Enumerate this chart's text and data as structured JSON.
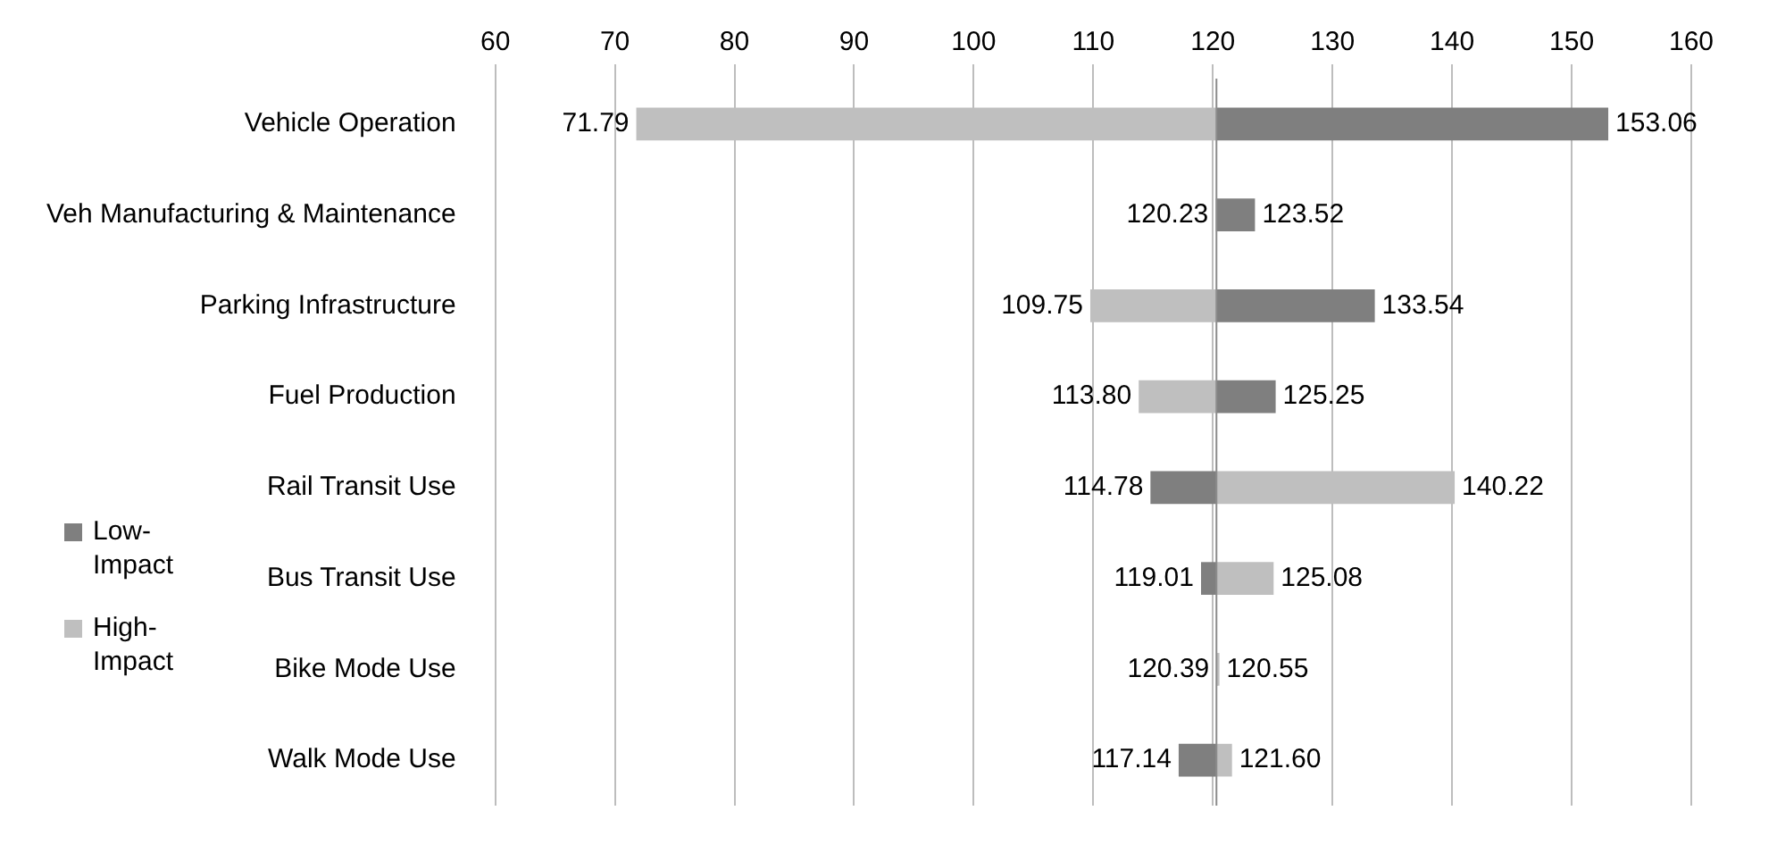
{
  "chart_data": {
    "type": "bar",
    "orientation": "horizontal",
    "categories": [
      "Vehicle Operation",
      "Veh Manufacturing & Maintenance",
      "Parking Infrastructure",
      "Fuel Production",
      "Rail Transit Use",
      "Bus Transit Use",
      "Bike Mode Use",
      "Walk Mode Use"
    ],
    "series": [
      {
        "name": "Low-Impact",
        "color": "#7f7f7f",
        "base": [
          120.3,
          120.3,
          120.3,
          120.3,
          120.3,
          120.3,
          120.3,
          120.3
        ],
        "values": [
          32.76,
          3.22,
          13.24,
          4.95,
          -5.52,
          -1.29,
          0.09,
          -3.16
        ],
        "value_labels": [
          "153.06",
          "123.52",
          "133.54",
          "125.25",
          "114.78",
          "119.01",
          "120.39",
          "117.14"
        ]
      },
      {
        "name": "High-Impact",
        "color": "#bfbfbf",
        "base": [
          120.3,
          120.3,
          120.3,
          120.3,
          120.3,
          120.3,
          120.3,
          120.3
        ],
        "values": [
          -48.51,
          -0.07,
          -10.55,
          -6.5,
          19.92,
          4.78,
          0.25,
          1.3
        ],
        "value_labels": [
          "71.79",
          "120.23",
          "109.75",
          "113.80",
          "140.22",
          "125.08",
          "120.55",
          "121.60"
        ]
      }
    ],
    "xlim": [
      60,
      160
    ],
    "xticks": [
      60,
      70,
      80,
      90,
      100,
      110,
      120,
      130,
      140,
      150,
      160
    ],
    "ref_lines": [
      {
        "axis": "x",
        "value": 120.3,
        "color": "#8c8c8c"
      }
    ],
    "grid": "x",
    "legend": "left"
  }
}
